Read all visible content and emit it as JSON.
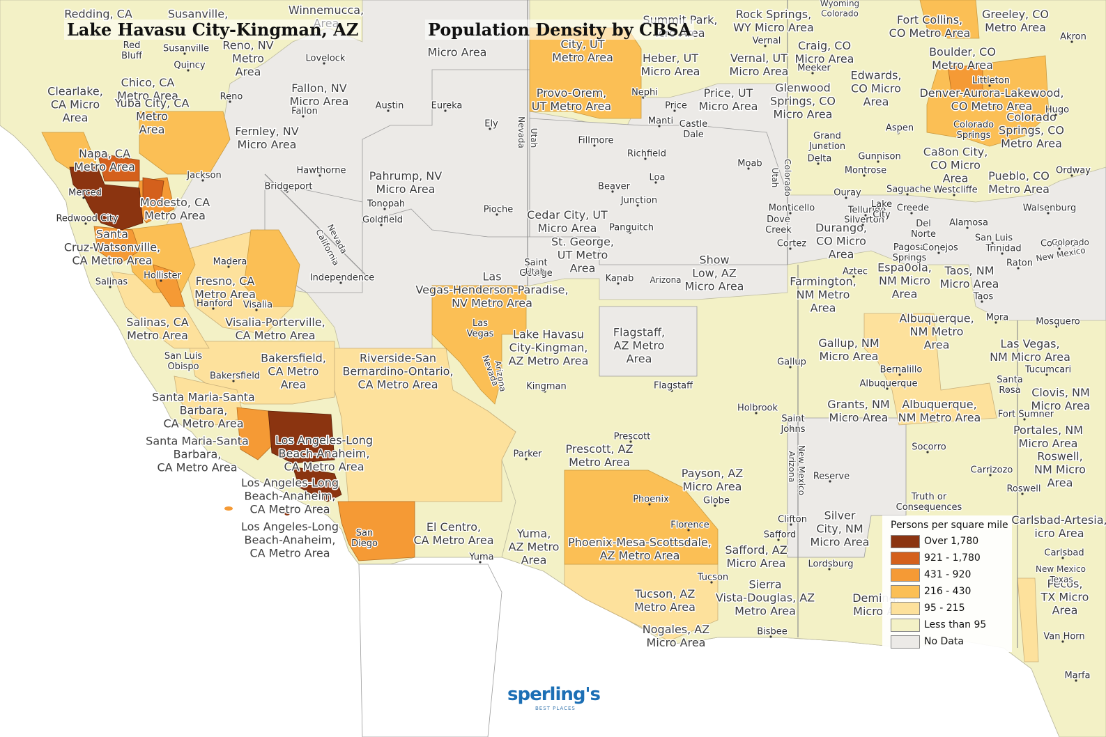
{
  "map": {
    "title_left": "Lake Havasu City-Kingman, AZ",
    "title_right": "Population Density by CBSA",
    "legend": {
      "title": "Persons per square mile",
      "items": [
        {
          "label": "Over 1,780",
          "color": "#8b3410"
        },
        {
          "label": "921 - 1,780",
          "color": "#d4601c"
        },
        {
          "label": "431 - 920",
          "color": "#f59a35"
        },
        {
          "label": "216 - 430",
          "color": "#fbbf55"
        },
        {
          "label": "95 - 215",
          "color": "#fde19c"
        },
        {
          "label": "Less than 95",
          "color": "#f3f1c6"
        },
        {
          "label": "No Data",
          "color": "#eceae7"
        }
      ]
    },
    "logo": {
      "brand": "sperling's",
      "tagline": "BEST PLACES"
    },
    "colors": {
      "ocean": "#ffffff",
      "land_base": "#eceae7",
      "boundary": "#9a9a9a",
      "label": "#3e3e3e",
      "halo": "#ffffff"
    },
    "area_labels": [
      {
        "text": "Redding, CA"
      },
      {
        "text": "Susanville,"
      },
      {
        "text": "Winnemucca,\nArea"
      },
      {
        "text": "Summit Park,\nicro Area"
      },
      {
        "text": "Rock Springs,\nWY Micro Area"
      },
      {
        "text": "Fort Collins,\nCO Metro Area"
      },
      {
        "text": "Greeley, CO\nMetro Area"
      },
      {
        "text": "Micro Area"
      },
      {
        "text": "City, UT\nMetro Area"
      },
      {
        "text": "Heber, UT\nMicro Area"
      },
      {
        "text": "Vernal, UT\nMicro Area"
      },
      {
        "text": "Craig, CO\nMicro Area"
      },
      {
        "text": "Boulder, CO\nMetro Area"
      },
      {
        "text": "Reno, NV\nMetro\nArea"
      },
      {
        "text": "Chico, CA\nMetro Area"
      },
      {
        "text": "Yuba City, CA\nMetro\nArea"
      },
      {
        "text": "Clearlake,\nCA Micro\nArea"
      },
      {
        "text": "Fallon, NV\nMicro Area"
      },
      {
        "text": "Provo-Orem,\nUT Metro Area"
      },
      {
        "text": "Price, UT\nMicro Area"
      },
      {
        "text": "Glenwood\nSprings, CO\nMicro Area"
      },
      {
        "text": "Edwards,\nCO Micro\nArea"
      },
      {
        "text": "Denver-Aurora-Lakewood,\nCO Metro Area"
      },
      {
        "text": "Colorado\nSprings, CO\nMetro Area"
      },
      {
        "text": "Fernley, NV\nMicro Area"
      },
      {
        "text": "Napa, CA\nMetro Area"
      },
      {
        "text": "Pahrump, NV\nMicro Area"
      },
      {
        "text": "Ca8on City,\nCO Micro\nArea"
      },
      {
        "text": "Pueblo, CO\nMetro Area"
      },
      {
        "text": "Modesto, CA\nMetro Area"
      },
      {
        "text": "Cedar City, UT\nMicro Area"
      },
      {
        "text": "St. George,\nUT Metro\nArea"
      },
      {
        "text": "Santa\nCruz-Watsonville,\nCA Metro Area"
      },
      {
        "text": "Durango,\nCO Micro\nArea"
      },
      {
        "text": "Show\nLow, AZ\nMicro Area"
      },
      {
        "text": "Las\nVegas-Henderson-Paradise,\nNV Metro Area"
      },
      {
        "text": "Fresno, CA\nMetro Area"
      },
      {
        "text": "Farmington,\nNM Metro\nArea"
      },
      {
        "text": "Espa0ola,\nNM Micro\nArea"
      },
      {
        "text": "Taos, NM\nMicro Area"
      },
      {
        "text": "Salinas, CA\nMetro Area"
      },
      {
        "text": "Visalia-Porterville,\nCA Metro Area"
      },
      {
        "text": "Lake Havasu\nCity-Kingman,\nAZ Metro Area"
      },
      {
        "text": "Flagstaff,\nAZ Metro\nArea"
      },
      {
        "text": "Albuquerque,\nNM Metro\nArea"
      },
      {
        "text": "Gallup, NM\nMicro Area"
      },
      {
        "text": "Las Vegas,\nNM Micro Area"
      },
      {
        "text": "Bakersfield,\nCA Metro\nArea"
      },
      {
        "text": "Riverside-San\nBernardino-Ontario,\nCA Metro Area"
      },
      {
        "text": "Santa Maria-Santa\nBarbara,\nCA Metro Area"
      },
      {
        "text": "Grants, NM\nMicro Area"
      },
      {
        "text": "Albuquerque,\nNM Metro Area"
      },
      {
        "text": "Clovis, NM\nMicro Area"
      },
      {
        "text": "Santa Maria-Santa\nBarbara,\nCA Metro Area"
      },
      {
        "text": "Los Angeles-Long\nBeach-Anaheim,\nCA Metro Area"
      },
      {
        "text": "Portales, NM\nMicro Area"
      },
      {
        "text": "Prescott, AZ\nMetro Area"
      },
      {
        "text": "Roswell,\nNM Micro\nArea"
      },
      {
        "text": "Payson, AZ\nMicro Area"
      },
      {
        "text": "Los Angeles-Long\nBeach-Anaheim,\nCA Metro Area"
      },
      {
        "text": "Los Angeles-Long\nBeach-Anaheim,\nCA Metro Area"
      },
      {
        "text": "Silver\nCity, NM\nMicro Area"
      },
      {
        "text": "Carlsbad-Artesia,\nicro Area"
      },
      {
        "text": "El Centro,\nCA Metro Area"
      },
      {
        "text": "Yuma,\nAZ Metro\nArea"
      },
      {
        "text": "Phoenix-Mesa-Scottsdale,\nAZ Metro Area"
      },
      {
        "text": "Safford, AZ\nMicro Area"
      },
      {
        "text": "Pecos,\nTX Micro\nArea"
      },
      {
        "text": "Tucson, AZ\nMetro Area"
      },
      {
        "text": "Sierra\nVista-Douglas, AZ\nMetro Area"
      },
      {
        "text": "Deming,\nMicro Ar"
      },
      {
        "text": "Nogales, AZ\nMicro Area"
      }
    ],
    "places": [
      "Red\nBluff",
      "Susanville",
      "Lovelock",
      "Quincy",
      "Reno",
      "Fallon",
      "Austin",
      "Eureka",
      "Ely",
      "Jackson",
      "Hawthorne",
      "Bridgeport",
      "Tonopah",
      "Goldfield",
      "Pioche",
      "Merced",
      "Redwood City",
      "Madera",
      "Hollister",
      "Salinas",
      "Hanford",
      "Visalia",
      "Independence",
      "San Luis\nObispo",
      "Bakersfield",
      "Las\nVegas",
      "Kingman",
      "Parker",
      "Yuma",
      "San\nDiego",
      "Vernal",
      "Meeker",
      "Nephi",
      "Price",
      "Manti",
      "Castle\nDale",
      "Fillmore",
      "Richfield",
      "Loa",
      "Beaver",
      "Junction",
      "Panguitch",
      "Saint\nGeorge",
      "Kanab",
      "Moab",
      "Monticello",
      "Dove\nCreek",
      "Cortez",
      "Grand\nJunction",
      "Delta",
      "Montrose",
      "Gunnison",
      "Ouray",
      "Telluride",
      "Silverton",
      "Saguache",
      "Lake\nCity",
      "Creede",
      "Del\nNorte",
      "Alamosa",
      "Pagosa\nSprings",
      "Conejos",
      "San Luis",
      "Trinidad",
      "Raton",
      "Westcliffe",
      "Aspen",
      "Littleton",
      "Colorado\nSprings",
      "Hugo",
      "Ordway",
      "Walsenburg",
      "Akron",
      "Aztec",
      "Taos",
      "Mora",
      "Mosquero",
      "Tucumcari",
      "Santa\nRosa",
      "Fort Sumner",
      "Bernalillo",
      "Albuquerque",
      "Gallup",
      "Socorro",
      "Carrizozo",
      "Roswell",
      "Flagstaff",
      "Holbrook",
      "Saint\nJohns",
      "Prescott",
      "Phoenix",
      "Globe",
      "Florence",
      "Tucson",
      "Clifton",
      "Safford",
      "Lordsburg",
      "Bisbee",
      "Reserve",
      "Truth or\nConsequences",
      "Carlsbad",
      "Van Horn",
      "Marfa",
      "Colorado"
    ],
    "boundary_labels": [
      "Nevada",
      "California",
      "Nevada",
      "Utah",
      "Utah",
      "Arizona",
      "Arizona",
      "Nevada",
      "Utah",
      "Colorado",
      "Arizona",
      "New Mexico",
      "Colorado",
      "New Mexico",
      "Texas",
      "New Mexico",
      "Wyoming\nColorado"
    ]
  }
}
